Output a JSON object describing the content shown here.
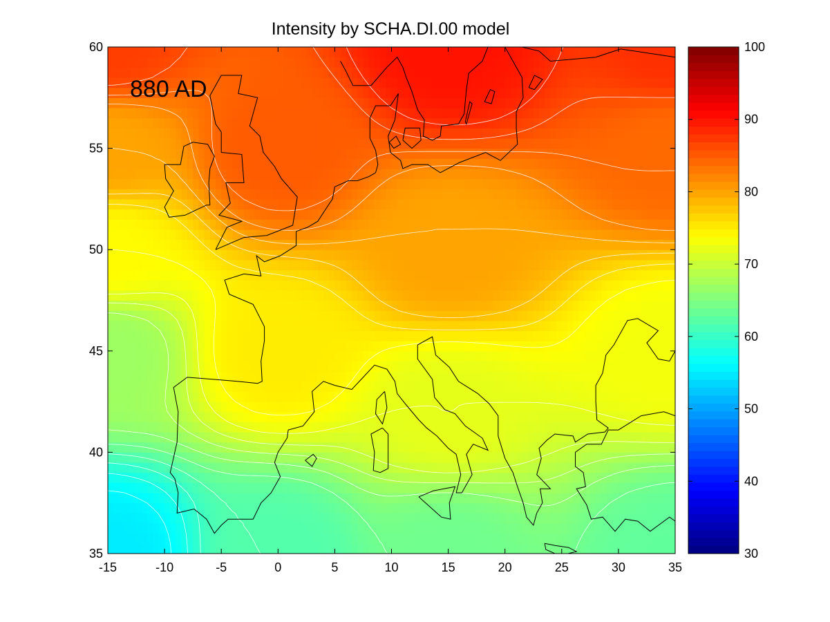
{
  "title": "Intensity by SCHA.DI.00 model",
  "annotation": "880 AD",
  "chart_data": {
    "type": "heatmap",
    "title": "Intensity by SCHA.DI.00 model",
    "xlabel": "",
    "ylabel": "",
    "xlim": [
      -15,
      35
    ],
    "ylim": [
      35,
      60
    ],
    "xticks": [
      -15,
      -10,
      -5,
      0,
      5,
      10,
      15,
      20,
      25,
      30,
      35
    ],
    "yticks": [
      35,
      40,
      45,
      50,
      55,
      60
    ],
    "colorbar": {
      "colormap": "jet",
      "range": [
        30,
        100
      ],
      "ticks": [
        30,
        40,
        50,
        60,
        70,
        80,
        90,
        100
      ]
    },
    "field_samples": [
      {
        "lon": -15,
        "lat": 35,
        "value": 55
      },
      {
        "lon": -15,
        "lat": 45,
        "value": 67
      },
      {
        "lon": -15,
        "lat": 50,
        "value": 74
      },
      {
        "lon": -15,
        "lat": 55,
        "value": 80
      },
      {
        "lon": -15,
        "lat": 60,
        "value": 87
      },
      {
        "lon": 0,
        "lat": 35,
        "value": 62
      },
      {
        "lon": 0,
        "lat": 45,
        "value": 75
      },
      {
        "lon": 0,
        "lat": 55,
        "value": 85
      },
      {
        "lon": 15,
        "lat": 35,
        "value": 64
      },
      {
        "lon": 15,
        "lat": 42,
        "value": 72
      },
      {
        "lon": 15,
        "lat": 50,
        "value": 80
      },
      {
        "lon": 15,
        "lat": 60,
        "value": 90
      },
      {
        "lon": 35,
        "lat": 35,
        "value": 63
      },
      {
        "lon": 35,
        "lat": 45,
        "value": 73
      },
      {
        "lon": 35,
        "lat": 55,
        "value": 84
      },
      {
        "lon": 35,
        "lat": 60,
        "value": 88
      }
    ],
    "contour_interval": 2,
    "grid": false,
    "legend": "colorbar right"
  },
  "coastlines": {
    "british_isles": [
      [
        -5.5,
        50
      ],
      [
        -3,
        50.6
      ],
      [
        -1,
        50.7
      ],
      [
        1.3,
        51.2
      ],
      [
        1.7,
        52.6
      ],
      [
        0.3,
        53.5
      ],
      [
        -0.3,
        54.1
      ],
      [
        -1.3,
        54.8
      ],
      [
        -1.6,
        55.6
      ],
      [
        -2.5,
        56.1
      ],
      [
        -1.8,
        57.5
      ],
      [
        -3.5,
        57.7
      ],
      [
        -3.2,
        58.6
      ],
      [
        -5,
        58.6
      ],
      [
        -6,
        57.6
      ],
      [
        -5.5,
        56.2
      ],
      [
        -5,
        55.8
      ],
      [
        -5,
        54.8
      ],
      [
        -3.2,
        54.7
      ],
      [
        -3,
        53.3
      ],
      [
        -4.6,
        53.3
      ],
      [
        -4.2,
        52.3
      ],
      [
        -5.2,
        51.7
      ],
      [
        -3.2,
        51.4
      ],
      [
        -4.5,
        51.1
      ],
      [
        -5.5,
        50
      ]
    ],
    "ireland": [
      [
        -6,
        52.2
      ],
      [
        -6.1,
        53.3
      ],
      [
        -6,
        54
      ],
      [
        -5.6,
        54.6
      ],
      [
        -6.2,
        55.2
      ],
      [
        -7.5,
        55.3
      ],
      [
        -8.3,
        55.1
      ],
      [
        -8.6,
        54.2
      ],
      [
        -10,
        54.2
      ],
      [
        -9.9,
        53.5
      ],
      [
        -9.2,
        52.9
      ],
      [
        -10,
        52.1
      ],
      [
        -9.6,
        51.6
      ],
      [
        -8.2,
        51.7
      ],
      [
        -6.3,
        52.2
      ],
      [
        -6,
        52.2
      ]
    ],
    "continent": [
      [
        35,
        59.5
      ],
      [
        30.2,
        59.9
      ],
      [
        28,
        59.5
      ],
      [
        24,
        59.3
      ],
      [
        23,
        59.8
      ],
      [
        21.5,
        60
      ],
      [
        20,
        60
      ],
      [
        21,
        59
      ],
      [
        21.5,
        58.5
      ],
      [
        21.6,
        57.5
      ],
      [
        21,
        56.8
      ],
      [
        21,
        56
      ],
      [
        21.1,
        55.2
      ],
      [
        19.6,
        54.4
      ],
      [
        18.6,
        54.7
      ],
      [
        18.3,
        54.8
      ],
      [
        16,
        54.3
      ],
      [
        14.3,
        53.8
      ],
      [
        13.2,
        54.2
      ],
      [
        11.8,
        54.2
      ],
      [
        11,
        54
      ],
      [
        10.8,
        54.4
      ],
      [
        9.9,
        54.8
      ],
      [
        9.7,
        55.6
      ],
      [
        10.3,
        56.4
      ],
      [
        10.6,
        57.7
      ],
      [
        9.9,
        57.1
      ],
      [
        8.6,
        57.1
      ],
      [
        8.1,
        56.5
      ],
      [
        8.1,
        55.5
      ],
      [
        8.6,
        54.9
      ],
      [
        8.8,
        54.2
      ],
      [
        8.6,
        53.8
      ],
      [
        8,
        53.6
      ],
      [
        7,
        53.4
      ],
      [
        6.2,
        53.4
      ],
      [
        5,
        53.1
      ],
      [
        4.8,
        52.5
      ],
      [
        4.2,
        52
      ],
      [
        3.5,
        51.4
      ],
      [
        2.6,
        51.1
      ],
      [
        1.6,
        50.9
      ],
      [
        1.6,
        50.2
      ],
      [
        0.2,
        49.7
      ],
      [
        -1.2,
        49.4
      ],
      [
        -1.9,
        49.7
      ],
      [
        -1.5,
        48.7
      ],
      [
        -3,
        48.8
      ],
      [
        -4.7,
        48.5
      ],
      [
        -4.3,
        47.8
      ],
      [
        -2.2,
        47.3
      ],
      [
        -1.2,
        46.2
      ],
      [
        -1.2,
        45.5
      ],
      [
        -1.5,
        44.5
      ],
      [
        -1.4,
        43.5
      ],
      [
        -1.8,
        43.4
      ],
      [
        -3.6,
        43.5
      ],
      [
        -5.8,
        43.6
      ],
      [
        -8,
        43.7
      ],
      [
        -9.2,
        43.2
      ],
      [
        -8.8,
        42
      ],
      [
        -8.9,
        40.5
      ],
      [
        -9.5,
        39
      ],
      [
        -9.1,
        38.7
      ],
      [
        -8.8,
        38
      ],
      [
        -8.9,
        37
      ],
      [
        -7.4,
        37.2
      ],
      [
        -6.3,
        36.7
      ],
      [
        -5.6,
        36
      ],
      [
        -5,
        36.4
      ],
      [
        -4.4,
        36.7
      ],
      [
        -2.2,
        36.7
      ],
      [
        -1.5,
        37.5
      ],
      [
        -0.6,
        38
      ],
      [
        0.2,
        38.8
      ],
      [
        -0.3,
        39.5
      ],
      [
        0,
        40
      ],
      [
        0.8,
        40.7
      ],
      [
        0.9,
        41.1
      ],
      [
        2.2,
        41.3
      ],
      [
        3.2,
        42
      ],
      [
        3.1,
        42.5
      ],
      [
        3,
        43
      ],
      [
        4,
        43.5
      ],
      [
        5,
        43.3
      ],
      [
        6.5,
        43.1
      ],
      [
        7.5,
        43.7
      ],
      [
        8.5,
        44.3
      ],
      [
        9.6,
        44.1
      ],
      [
        10.3,
        43.5
      ],
      [
        10.5,
        42.9
      ],
      [
        11.2,
        42.4
      ],
      [
        12.4,
        41.6
      ],
      [
        13.1,
        41.2
      ],
      [
        14,
        40.8
      ],
      [
        15,
        40.2
      ],
      [
        15.7,
        39.9
      ],
      [
        16.1,
        38.9
      ],
      [
        15.7,
        38
      ],
      [
        16.2,
        38
      ],
      [
        17.1,
        38.9
      ],
      [
        16.6,
        39.9
      ],
      [
        17.2,
        40.4
      ],
      [
        18.5,
        40.1
      ],
      [
        18,
        40.7
      ],
      [
        16.5,
        41.3
      ],
      [
        15.6,
        41.9
      ],
      [
        14.7,
        42.1
      ],
      [
        13.8,
        42.7
      ],
      [
        13.6,
        43.6
      ],
      [
        12.3,
        44.6
      ],
      [
        12.3,
        45.3
      ],
      [
        13.6,
        45.7
      ],
      [
        13.9,
        44.8
      ],
      [
        15.1,
        44.2
      ],
      [
        15.9,
        43.5
      ],
      [
        17.6,
        42.9
      ],
      [
        18.6,
        42.4
      ],
      [
        19.4,
        41.8
      ],
      [
        19.4,
        40.8
      ],
      [
        20,
        39.7
      ],
      [
        20.7,
        39
      ],
      [
        21.1,
        38.3
      ],
      [
        21.6,
        37.5
      ],
      [
        21.9,
        36.8
      ],
      [
        22.5,
        36.4
      ],
      [
        22.8,
        37
      ],
      [
        23.3,
        37.5
      ],
      [
        23.1,
        38.2
      ],
      [
        24,
        38.2
      ],
      [
        22.8,
        38.9
      ],
      [
        23.2,
        39.7
      ],
      [
        23,
        40.2
      ],
      [
        23.7,
        40.6
      ],
      [
        24.4,
        40.9
      ],
      [
        26,
        40.8
      ],
      [
        26.2,
        40.5
      ],
      [
        27.3,
        40.9
      ],
      [
        28.8,
        41
      ],
      [
        29.1,
        41.2
      ],
      [
        28.1,
        41.6
      ],
      [
        28,
        42.5
      ],
      [
        28,
        43.3
      ],
      [
        28.6,
        43.9
      ],
      [
        28.9,
        44.8
      ],
      [
        29.6,
        45.3
      ],
      [
        30.8,
        46.5
      ],
      [
        31.7,
        46.6
      ],
      [
        33.5,
        46
      ],
      [
        32.5,
        45.4
      ],
      [
        33.5,
        44.6
      ],
      [
        34.5,
        44.5
      ],
      [
        35,
        45
      ]
    ],
    "anatolia": [
      [
        35,
        41.8
      ],
      [
        34,
        42
      ],
      [
        32,
        41.8
      ],
      [
        30,
        41.1
      ],
      [
        29.1,
        41.1
      ],
      [
        28.5,
        40.4
      ],
      [
        27.2,
        40.4
      ],
      [
        26.2,
        40
      ],
      [
        26.2,
        39.3
      ],
      [
        26.9,
        39
      ],
      [
        27.1,
        38.3
      ],
      [
        26.3,
        38.2
      ],
      [
        27.2,
        37.4
      ],
      [
        27.6,
        36.7
      ],
      [
        28.6,
        36.8
      ],
      [
        29.7,
        36.1
      ],
      [
        30.6,
        36.7
      ],
      [
        31.7,
        36.6
      ],
      [
        32.8,
        36.1
      ],
      [
        34.5,
        36.8
      ],
      [
        35,
        36.6
      ]
    ],
    "sicily": [
      [
        12.4,
        37.8
      ],
      [
        13.7,
        38.1
      ],
      [
        15.6,
        38.3
      ],
      [
        15.1,
        37.5
      ],
      [
        15.2,
        36.7
      ],
      [
        14.4,
        36.8
      ],
      [
        12.8,
        37.6
      ],
      [
        12.4,
        37.8
      ]
    ],
    "sardinia": [
      [
        9.2,
        41.2
      ],
      [
        9.7,
        40.9
      ],
      [
        9.7,
        39.2
      ],
      [
        9,
        39
      ],
      [
        8.4,
        39.1
      ],
      [
        8.5,
        40
      ],
      [
        8.2,
        40.9
      ],
      [
        9.2,
        41.2
      ]
    ],
    "corsica": [
      [
        9.4,
        43
      ],
      [
        9.6,
        42.2
      ],
      [
        9.2,
        41.4
      ],
      [
        8.6,
        41.9
      ],
      [
        8.7,
        42.6
      ],
      [
        9.4,
        43
      ]
    ],
    "mallorca": [
      [
        2.4,
        39.6
      ],
      [
        3.1,
        39.9
      ],
      [
        3.4,
        39.7
      ],
      [
        3,
        39.3
      ],
      [
        2.4,
        39.6
      ]
    ],
    "crete": [
      [
        23.5,
        35.5
      ],
      [
        24.4,
        35.4
      ],
      [
        25.6,
        35.3
      ],
      [
        26.3,
        35.1
      ],
      [
        24.8,
        34.9
      ],
      [
        23.6,
        35.2
      ],
      [
        23.5,
        35.5
      ]
    ],
    "sjaelland": [
      [
        11,
        55.4
      ],
      [
        11.2,
        56
      ],
      [
        12.5,
        56
      ],
      [
        12.6,
        55.4
      ],
      [
        11.8,
        55
      ],
      [
        11,
        55.4
      ]
    ],
    "fyn": [
      [
        9.8,
        55.3
      ],
      [
        10.4,
        55.6
      ],
      [
        10.8,
        55.2
      ],
      [
        10.2,
        55
      ],
      [
        9.8,
        55.3
      ]
    ],
    "gotland": [
      [
        18.2,
        57.3
      ],
      [
        18.7,
        57.9
      ],
      [
        19.1,
        57.8
      ],
      [
        18.8,
        57.2
      ],
      [
        18.2,
        57.3
      ]
    ],
    "oland": [
      [
        16.5,
        56.3
      ],
      [
        16.9,
        57.3
      ],
      [
        17.1,
        57.2
      ],
      [
        16.6,
        56.2
      ],
      [
        16.5,
        56.3
      ]
    ],
    "scandinavia": [
      [
        5.5,
        59.3
      ],
      [
        5.9,
        58.9
      ],
      [
        6.6,
        58.1
      ],
      [
        8.2,
        58.1
      ],
      [
        9.6,
        59
      ],
      [
        10.5,
        59.5
      ],
      [
        11,
        59
      ],
      [
        11.3,
        58.5
      ],
      [
        11.8,
        57.8
      ],
      [
        12.3,
        56.9
      ],
      [
        12.9,
        56.4
      ],
      [
        12.8,
        55.6
      ],
      [
        13.6,
        55.4
      ],
      [
        14.3,
        55.6
      ],
      [
        14.4,
        56.1
      ],
      [
        15.9,
        56.2
      ],
      [
        16.4,
        56.7
      ],
      [
        16.6,
        57.9
      ],
      [
        16.8,
        58.7
      ],
      [
        18,
        59.3
      ],
      [
        18.5,
        60
      ]
    ],
    "saaremaa": [
      [
        22.1,
        58
      ],
      [
        22.6,
        58.6
      ],
      [
        23.3,
        58.4
      ],
      [
        22.6,
        57.9
      ],
      [
        22.1,
        58
      ]
    ]
  }
}
